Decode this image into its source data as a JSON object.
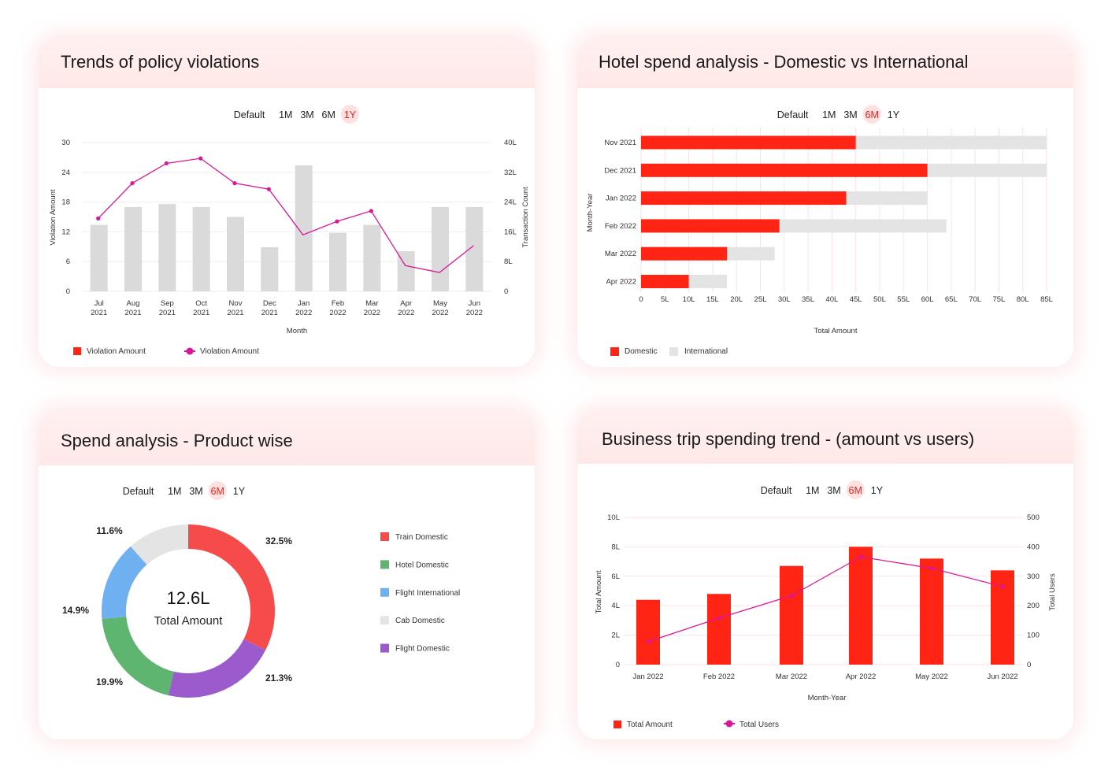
{
  "filters": [
    "Default",
    "1M",
    "3M",
    "6M",
    "1Y"
  ],
  "colors": {
    "red": "#ff2414",
    "gray": "#dadada",
    "lightgray": "#e4e4e4",
    "magenta": "#d9179a",
    "green": "#5db56f",
    "blue": "#6fb1f0",
    "purple": "#9b5bcc",
    "donut_red": "#f54b4b"
  },
  "chart_data": [
    {
      "id": "policy",
      "type": "bar",
      "title": "Trends of policy violations",
      "active_filter": "1Y",
      "categories": [
        "Jul|2021",
        "Aug|2021",
        "Sep|2021",
        "Oct|2021",
        "Nov|2021",
        "Dec|2021",
        "Jan|2022",
        "Feb|2022",
        "Mar|2022",
        "Apr|2022",
        "May|2022",
        "Jun|2022"
      ],
      "series": [
        {
          "name": "Violation Amount",
          "kind": "bar",
          "axis": "left",
          "values": [
            13.4,
            17,
            17.6,
            17,
            15,
            8.9,
            25.4,
            11.8,
            13.4,
            8.1,
            17,
            17
          ]
        },
        {
          "name": "Violation Amount",
          "kind": "line",
          "axis": "left",
          "values": [
            14.7,
            21.8,
            25.8,
            26.8,
            21.8,
            20.6,
            11.4,
            14.1,
            16.2,
            5.2,
            3.8,
            9.2
          ]
        }
      ],
      "yticks_left": [
        "0",
        "6",
        "12",
        "18",
        "24",
        "30"
      ],
      "yticks_right": [
        "0",
        "8L",
        "16L",
        "24L",
        "32L",
        "40L"
      ],
      "ylim": [
        0,
        30
      ],
      "xlabel": "Month",
      "ylabel": "Violation Amount",
      "ylabel_right": "Transaction Count"
    },
    {
      "id": "hotel",
      "type": "bar",
      "orientation": "horizontal",
      "title": "Hotel spend analysis - Domestic vs International",
      "active_filter": "6M",
      "categories": [
        "Nov 2021",
        "Dec 2021",
        "Jan 2022",
        "Feb 2022",
        "Mar 2022",
        "Apr 2022"
      ],
      "series": [
        {
          "name": "Domestic",
          "values": [
            45,
            60,
            43,
            29,
            18,
            10
          ]
        },
        {
          "name": "International",
          "values": [
            40,
            25,
            17,
            35,
            10,
            8
          ]
        }
      ],
      "xticks": [
        "0",
        "5L",
        "10L",
        "15L",
        "20L",
        "25L",
        "30L",
        "35L",
        "40L",
        "45L",
        "50L",
        "55L",
        "60L",
        "65L",
        "70L",
        "75L",
        "80L",
        "85L"
      ],
      "xlim": [
        0,
        85
      ],
      "xlabel": "Total Amount",
      "ylabel": "Month-Year"
    },
    {
      "id": "product",
      "type": "pie",
      "title": "Spend analysis - Product wise",
      "active_filter": "6M",
      "center_value": "12.6L",
      "center_label": "Total Amount",
      "slices": [
        {
          "name": "Train Domestic",
          "value": 32.5,
          "label": "32.5%"
        },
        {
          "name": "Flight Domestic",
          "value": 21.3,
          "label": "21.3%"
        },
        {
          "name": "Hotel Domestic",
          "value": 19.9,
          "label": "19.9%"
        },
        {
          "name": "Flight International",
          "value": 14.9,
          "label": "14.9%"
        },
        {
          "name": "Cab Domestic",
          "value": 11.6,
          "label": "11.6%"
        }
      ],
      "legend": [
        "Train Domestic",
        "Hotel Domestic",
        "Flight International",
        "Cab Domestic",
        "Flight Domestic"
      ]
    },
    {
      "id": "trip",
      "type": "bar",
      "title": "Business trip spending trend - (amount vs users)",
      "active_filter": "6M",
      "categories": [
        "Jan 2022",
        "Feb 2022",
        "Mar 2022",
        "Apr 2022",
        "May 2022",
        "Jun 2022"
      ],
      "series": [
        {
          "name": "Total Amount",
          "kind": "bar",
          "axis": "left",
          "values": [
            4.4,
            4.8,
            6.7,
            8.0,
            7.2,
            6.4
          ]
        },
        {
          "name": "Total Users",
          "kind": "line",
          "axis": "right",
          "values": [
            78,
            158,
            234,
            366,
            327,
            265
          ]
        }
      ],
      "yticks_left": [
        "0",
        "2L",
        "4L",
        "6L",
        "8L",
        "10L"
      ],
      "yticks_right": [
        "0",
        "100",
        "200",
        "300",
        "400",
        "500"
      ],
      "ylim": [
        0,
        10
      ],
      "ylim_right": [
        0,
        500
      ],
      "xlabel": "Month-Year",
      "ylabel": "Total Amount",
      "ylabel_right": "Total Users"
    }
  ]
}
